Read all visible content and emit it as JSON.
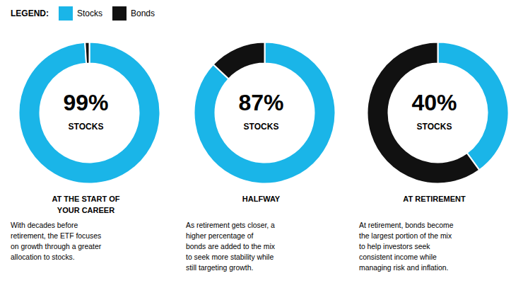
{
  "chart_data": [
    {
      "type": "pie",
      "title": "AT THE START OF\nYOUR CAREER",
      "categories": [
        "Stocks",
        "Bonds"
      ],
      "values": [
        99,
        1
      ],
      "colors": [
        "#1ab5e8",
        "#111111"
      ],
      "legend": "top-left",
      "annotations": [
        "99%",
        "STOCKS",
        "With decades before\nretirement, the ETF focuses\non growth through a greater\nallocation to stocks.",
        "LEGEND:"
      ]
    },
    {
      "type": "pie",
      "title": "HALFWAY",
      "categories": [
        "Stocks",
        "Bonds"
      ],
      "values": [
        87,
        13
      ],
      "colors": [
        "#1ab5e8",
        "#111111"
      ],
      "annotations": [
        "87%",
        "STOCKS",
        "As retirement gets closer, a\nhigher percentage of\nbonds are added to the mix\nto seek more stability while\nstill targeting growth."
      ]
    },
    {
      "type": "pie",
      "title": "AT RETIREMENT",
      "categories": [
        "Stocks",
        "Bonds"
      ],
      "values": [
        40,
        60
      ],
      "colors": [
        "#1ab5e8",
        "#111111"
      ],
      "annotations": [
        "40%",
        "STOCKS",
        "At retirement, bonds become\nthe largest portion of the mix\nto help investors seek\nconsistent income while\nmanaging risk and inflation."
      ]
    }
  ]
}
